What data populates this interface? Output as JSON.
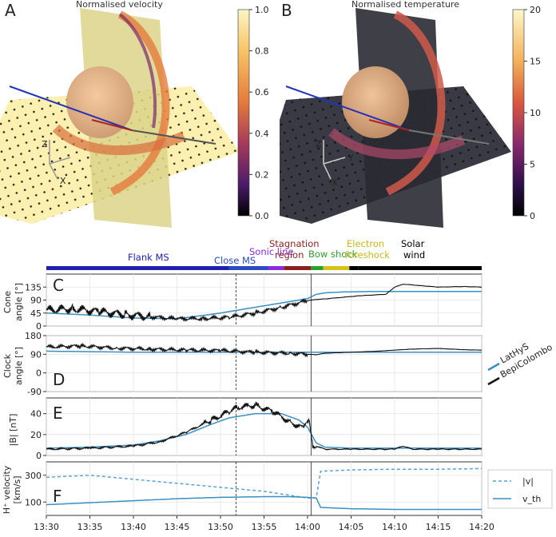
{
  "panels": {
    "A": {
      "letter": "A",
      "title": "Normalised velocity",
      "colorbar": {
        "ticks": [
          "1.0",
          "0.8",
          "0.6",
          "0.4",
          "0.2",
          "0.0"
        ],
        "stops": [
          "#fbf6c4",
          "#f7c466",
          "#e47a3c",
          "#a53a5a",
          "#4b1b6b",
          "#000000"
        ]
      }
    },
    "B": {
      "letter": "B",
      "title": "Normalised temperature",
      "colorbar": {
        "ticks": [
          "20",
          "15",
          "10",
          "5",
          "0"
        ],
        "stops": [
          "#fcf7c8",
          "#f3b15a",
          "#d9593f",
          "#8a2a6d",
          "#2c0f4a",
          "#000000"
        ]
      }
    },
    "axes_3d": {
      "z": "Z",
      "y": "Y",
      "x": "X"
    }
  },
  "regions": [
    {
      "label": "Flank MS",
      "color": "#2020b0"
    },
    {
      "label": "Close MS",
      "color": "#2a4cc0"
    },
    {
      "label": "Sonic line",
      "color": "#8a2be2"
    },
    {
      "label": "Stagnation region",
      "color": "#8b1e1e"
    },
    {
      "label": "Bow shock",
      "color": "#2ca02c"
    },
    {
      "label": "Electron foreshock",
      "color": "#d4c21a"
    },
    {
      "label": "Solar wind",
      "color": "#000000"
    }
  ],
  "region_labels": {
    "flank": "Flank MS",
    "close": "Close MS",
    "sonic": "Sonic line",
    "stag1": "Stagnation",
    "stag2": "region",
    "bow": "Bow shock",
    "elec1": "Electron",
    "elec2": "foreshock",
    "sw1": "Solar",
    "sw2": "wind"
  },
  "panel_letters": {
    "C": "C",
    "D": "D",
    "E": "E",
    "F": "F"
  },
  "ylabels": {
    "C": [
      "Cone",
      "angle [°]"
    ],
    "D": [
      "Clock",
      "angle [°]"
    ],
    "E": [
      "|B| [nT]"
    ],
    "F": [
      "H⁺ velocity",
      "[km/s]"
    ]
  },
  "legend_right": {
    "lathys": "LatHyS",
    "bepi": "BepiColombo"
  },
  "legend_f": {
    "v": "|v|",
    "vth": "v_th"
  },
  "chart_data": {
    "type": "line",
    "x_ticks": [
      "13:30",
      "13:35",
      "13:40",
      "13:45",
      "13:50",
      "13:55",
      "14:00",
      "14:05",
      "14:10",
      "14:15",
      "14:20"
    ],
    "x_minutes": [
      0,
      5,
      10,
      15,
      20,
      25,
      30,
      35,
      40,
      45,
      50
    ],
    "vlines_minutes": [
      21.8,
      30.4
    ],
    "panels": [
      {
        "id": "C",
        "ylim": [
          0,
          180
        ],
        "yticks": [
          0,
          45,
          90,
          135
        ],
        "series": [
          {
            "name": "LatHyS",
            "color": "#3a8fc4",
            "x": [
              0,
              5,
              10,
              15,
              20,
              25,
              28,
              30,
              31,
              32,
              34,
              38,
              40,
              45,
              50
            ],
            "y": [
              45,
              38,
              28,
              25,
              45,
              70,
              85,
              95,
              110,
              115,
              118,
              120,
              120,
              120,
              120
            ]
          },
          {
            "name": "BepiColombo",
            "color": "#111111",
            "x": [
              0,
              3,
              6,
              9,
              12,
              15,
              18,
              21,
              24,
              27,
              30,
              31,
              32,
              36,
              39,
              40,
              41,
              43,
              45,
              48,
              50
            ],
            "y": [
              55,
              60,
              50,
              40,
              32,
              25,
              26,
              30,
              45,
              65,
              88,
              92,
              94,
              105,
              110,
              135,
              145,
              140,
              135,
              137,
              135
            ]
          }
        ]
      },
      {
        "id": "D",
        "ylim": [
          -90,
          180
        ],
        "yticks": [
          -90,
          0,
          90,
          180
        ],
        "series": [
          {
            "name": "LatHyS",
            "color": "#3a8fc4",
            "x": [
              0,
              10,
              20,
              30,
              40,
              50
            ],
            "y": [
              105,
              100,
              100,
              100,
              100,
              100
            ]
          },
          {
            "name": "BepiColombo",
            "color": "#111111",
            "x": [
              0,
              4,
              8,
              12,
              16,
              20,
              24,
              28,
              30,
              31,
              32,
              35,
              38,
              40,
              42,
              45,
              48,
              50
            ],
            "y": [
              125,
              130,
              120,
              115,
              110,
              108,
              100,
              95,
              90,
              88,
              95,
              100,
              105,
              110,
              115,
              118,
              112,
              110
            ]
          }
        ]
      },
      {
        "id": "E",
        "ylim": [
          0,
          55
        ],
        "yticks": [
          0,
          20,
          40
        ],
        "series": [
          {
            "name": "LatHyS",
            "color": "#3a8fc4",
            "x": [
              0,
              5,
              10,
              13,
              16,
              19,
              21,
              24,
              27,
              29,
              30,
              31,
              32,
              35,
              40,
              45,
              50
            ],
            "y": [
              7,
              8,
              10,
              14,
              20,
              30,
              36,
              40,
              40,
              34,
              27,
              12,
              8,
              7,
              7,
              7,
              7
            ]
          },
          {
            "name": "BepiColombo",
            "color": "#111111",
            "x": [
              0,
              5,
              10,
              13,
              16,
              19,
              21,
              22,
              24,
              26,
              28,
              29.5,
              30.2,
              30.6,
              32,
              35,
              40,
              41,
              42,
              45,
              50
            ],
            "y": [
              6,
              7,
              9,
              13,
              22,
              34,
              42,
              46,
              48,
              42,
              32,
              26,
              33,
              10,
              6,
              6,
              6,
              9,
              6,
              6,
              6
            ]
          }
        ]
      },
      {
        "id": "F",
        "ylim": [
          0,
          400
        ],
        "yticks": [
          100,
          300
        ],
        "series": [
          {
            "name": "|v|",
            "color": "#5aa2d6",
            "dashed": true,
            "x": [
              0,
              5,
              10,
              15,
              20,
              25,
              28,
              30,
              31,
              31.5,
              35,
              40,
              45,
              50
            ],
            "y": [
              285,
              300,
              270,
              240,
              210,
              180,
              150,
              130,
              130,
              330,
              340,
              345,
              345,
              350
            ]
          },
          {
            "name": "v_th",
            "color": "#3a8fc4",
            "x": [
              0,
              5,
              10,
              15,
              20,
              25,
              28,
              30,
              31,
              31.5,
              35,
              40,
              45,
              50
            ],
            "y": [
              80,
              95,
              110,
              125,
              135,
              140,
              140,
              135,
              130,
              60,
              50,
              45,
              45,
              45
            ]
          }
        ]
      }
    ]
  }
}
